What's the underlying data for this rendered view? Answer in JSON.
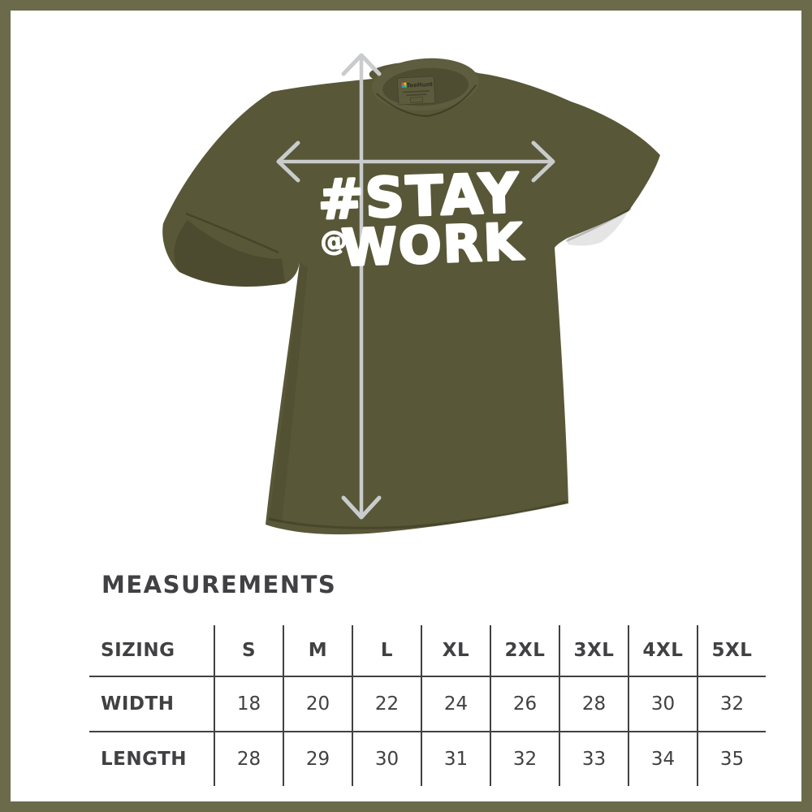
{
  "colors": {
    "frame": "#6b6b4b",
    "page-bg": "#ffffff",
    "shirt": "#585737",
    "shirt-dark": "#4a4930",
    "collar": "#5e5d3f",
    "collar-inner": "#4e4d31",
    "arrow": "#c9cbcc",
    "design": "#ffffff",
    "line": "#414042",
    "text": "#414042"
  },
  "shirt": {
    "color_name": "military green",
    "design": {
      "line1": "#STAY",
      "line2_prefix": "@",
      "line2": "WORK"
    },
    "brand_label": "TeeHunt",
    "arrows": {
      "vertical": "length measurement arrow",
      "horizontal": "width measurement arrow"
    }
  },
  "measurements": {
    "heading": "MEASUREMENTS",
    "table": {
      "header": [
        "SIZING",
        "S",
        "M",
        "L",
        "XL",
        "2XL",
        "3XL",
        "4XL",
        "5XL"
      ],
      "rows": [
        {
          "label": "WIDTH",
          "values": [
            18,
            20,
            22,
            24,
            26,
            28,
            30,
            32
          ]
        },
        {
          "label": "LENGTH",
          "values": [
            28,
            29,
            30,
            31,
            32,
            33,
            34,
            35
          ]
        }
      ]
    }
  },
  "chart_data": {
    "type": "table",
    "title": "MEASUREMENTS",
    "columns": [
      "SIZING",
      "S",
      "M",
      "L",
      "XL",
      "2XL",
      "3XL",
      "4XL",
      "5XL"
    ],
    "rows": [
      [
        "WIDTH",
        18,
        20,
        22,
        24,
        26,
        28,
        30,
        32
      ],
      [
        "LENGTH",
        28,
        29,
        30,
        31,
        32,
        33,
        34,
        35
      ]
    ]
  }
}
